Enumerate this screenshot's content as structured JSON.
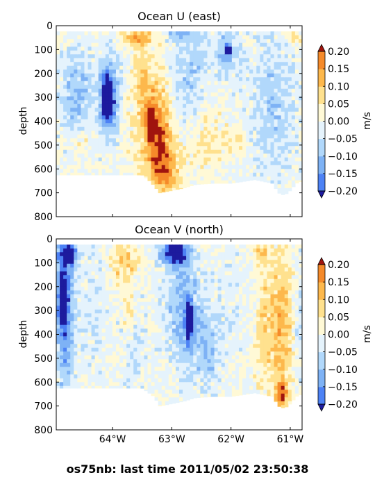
{
  "footer": "os75nb: last time 2011/05/02 23:50:38",
  "colormap": {
    "levels": [
      -0.2,
      -0.15,
      -0.1,
      -0.05,
      0.0,
      0.05,
      0.1,
      0.15,
      0.2
    ],
    "colors": [
      "#2a33f5",
      "#4d82f5",
      "#7eb2f5",
      "#b1d8fb",
      "#e5f3fc",
      "#fff9d6",
      "#ffe18e",
      "#fdb84c",
      "#f58a2a",
      "#e35010",
      "#b21800"
    ],
    "under_color": "#1d1b9e",
    "over_color": "#a0140e"
  },
  "chart_data": [
    {
      "type": "heatmap",
      "title": "Ocean U (east)",
      "xlabel": "",
      "ylabel": "depth",
      "colorbar_label": "m/s",
      "xlim": [
        -64.95,
        -60.8
      ],
      "ylim": [
        800,
        0
      ],
      "x_ticks": [
        -64,
        -63,
        -62,
        -61
      ],
      "x_tick_labels": [
        "64°W",
        "63°W",
        "62°W",
        "61°W"
      ],
      "x_tick_labels_visible": false,
      "y_ticks": [
        0,
        100,
        200,
        300,
        400,
        500,
        600,
        700,
        800
      ],
      "y_tick_labels": [
        "0",
        "100",
        "200",
        "300",
        "400",
        "500",
        "600",
        "700",
        "800"
      ],
      "colorbar_ticks": [
        "0.20",
        "0.15",
        "0.10",
        "0.05",
        "0.00",
        "−0.05",
        "−0.10",
        "−0.15",
        "−0.20"
      ],
      "bottom_depth_profile": {
        "x": [
          -64.95,
          -63.5,
          -63.35,
          -63.2,
          -63.0,
          -62.8,
          -62.6,
          -62.3,
          -62.0,
          -61.6,
          -61.3,
          -61.2,
          -61.1,
          -61.0,
          -60.9,
          -60.8
        ],
        "depth": [
          625,
          625,
          655,
          700,
          690,
          680,
          665,
          660,
          660,
          645,
          660,
          700,
          710,
          690,
          660,
          650
        ]
      },
      "features": [
        {
          "lon": -63.6,
          "depth": 50,
          "value": 0.13,
          "rx": 0.25,
          "ry": 40
        },
        {
          "lon": -63.5,
          "depth": 200,
          "value": 0.06,
          "rx": 0.15,
          "ry": 120
        },
        {
          "lon": -63.3,
          "depth": 400,
          "value": 0.13,
          "rx": 0.3,
          "ry": 220
        },
        {
          "lon": -63.35,
          "depth": 400,
          "value": 0.22,
          "rx": 0.07,
          "ry": 60
        },
        {
          "lon": -63.2,
          "depth": 500,
          "value": 0.11,
          "rx": 0.2,
          "ry": 130
        },
        {
          "lon": -63.1,
          "depth": 620,
          "value": 0.12,
          "rx": 0.25,
          "ry": 90
        },
        {
          "lon": -64.05,
          "depth": 300,
          "value": -0.2,
          "rx": 0.16,
          "ry": 160
        },
        {
          "lon": -64.1,
          "depth": 300,
          "value": -0.28,
          "rx": 0.07,
          "ry": 70
        },
        {
          "lon": -64.6,
          "depth": 280,
          "value": -0.1,
          "rx": 0.3,
          "ry": 180
        },
        {
          "lon": -64.5,
          "depth": 480,
          "value": 0.06,
          "rx": 0.15,
          "ry": 40
        },
        {
          "lon": -62.7,
          "depth": 200,
          "value": -0.08,
          "rx": 0.35,
          "ry": 220
        },
        {
          "lon": -62.4,
          "depth": 480,
          "value": 0.06,
          "rx": 0.3,
          "ry": 140
        },
        {
          "lon": -62.05,
          "depth": 110,
          "value": -0.11,
          "rx": 0.2,
          "ry": 90
        },
        {
          "lon": -62.05,
          "depth": 100,
          "value": -0.28,
          "rx": 0.04,
          "ry": 18
        },
        {
          "lon": -61.3,
          "depth": 330,
          "value": -0.08,
          "rx": 0.4,
          "ry": 300
        },
        {
          "lon": -61.9,
          "depth": 480,
          "value": 0.05,
          "rx": 0.2,
          "ry": 60
        },
        {
          "lon": -60.9,
          "depth": 40,
          "value": 0.07,
          "rx": 0.12,
          "ry": 40
        },
        {
          "lon": -62.8,
          "depth": 30,
          "value": -0.07,
          "rx": 0.35,
          "ry": 30
        }
      ]
    },
    {
      "type": "heatmap",
      "title": "Ocean V (north)",
      "xlabel": "",
      "ylabel": "depth",
      "colorbar_label": "m/s",
      "xlim": [
        -64.95,
        -60.8
      ],
      "ylim": [
        800,
        0
      ],
      "x_ticks": [
        -64,
        -63,
        -62,
        -61
      ],
      "x_tick_labels": [
        "64°W",
        "63°W",
        "62°W",
        "61°W"
      ],
      "x_tick_labels_visible": true,
      "y_ticks": [
        0,
        100,
        200,
        300,
        400,
        500,
        600,
        700,
        800
      ],
      "y_tick_labels": [
        "0",
        "100",
        "200",
        "300",
        "400",
        "500",
        "600",
        "700",
        "800"
      ],
      "colorbar_ticks": [
        "0.20",
        "0.15",
        "0.10",
        "0.05",
        "0.00",
        "−0.05",
        "−0.10",
        "−0.15",
        "−0.20"
      ],
      "bottom_depth_profile": {
        "x": [
          -64.95,
          -63.5,
          -63.3,
          -63.2,
          -63.0,
          -62.8,
          -62.6,
          -62.3,
          -62.0,
          -61.6,
          -61.3,
          -61.2,
          -61.1,
          -61.0,
          -60.9,
          -60.8
        ],
        "depth": [
          625,
          625,
          660,
          700,
          690,
          680,
          665,
          660,
          660,
          645,
          660,
          700,
          710,
          690,
          660,
          650
        ]
      },
      "features": [
        {
          "lon": -64.8,
          "depth": 300,
          "value": -0.18,
          "rx": 0.15,
          "ry": 320
        },
        {
          "lon": -64.85,
          "depth": 250,
          "value": -0.27,
          "rx": 0.06,
          "ry": 90
        },
        {
          "lon": -64.75,
          "depth": 60,
          "value": -0.23,
          "rx": 0.15,
          "ry": 50
        },
        {
          "lon": -64.3,
          "depth": 300,
          "value": -0.04,
          "rx": 0.25,
          "ry": 280
        },
        {
          "lon": -63.8,
          "depth": 100,
          "value": 0.1,
          "rx": 0.25,
          "ry": 80
        },
        {
          "lon": -63.7,
          "depth": 300,
          "value": 0.08,
          "rx": 0.1,
          "ry": 80
        },
        {
          "lon": -63.6,
          "depth": 400,
          "value": -0.05,
          "rx": 0.15,
          "ry": 200
        },
        {
          "lon": -62.95,
          "depth": 60,
          "value": -0.27,
          "rx": 0.22,
          "ry": 50
        },
        {
          "lon": -62.8,
          "depth": 300,
          "value": -0.12,
          "rx": 0.3,
          "ry": 230
        },
        {
          "lon": -62.7,
          "depth": 350,
          "value": -0.2,
          "rx": 0.06,
          "ry": 80
        },
        {
          "lon": -62.4,
          "depth": 450,
          "value": -0.09,
          "rx": 0.2,
          "ry": 180
        },
        {
          "lon": -62.0,
          "depth": 250,
          "value": -0.03,
          "rx": 0.3,
          "ry": 250
        },
        {
          "lon": -61.5,
          "depth": 60,
          "value": 0.09,
          "rx": 0.15,
          "ry": 50
        },
        {
          "lon": -61.15,
          "depth": 350,
          "value": 0.12,
          "rx": 0.2,
          "ry": 300
        },
        {
          "lon": -61.15,
          "depth": 650,
          "value": 0.18,
          "rx": 0.1,
          "ry": 60
        },
        {
          "lon": -61.45,
          "depth": 400,
          "value": 0.07,
          "rx": 0.15,
          "ry": 250
        },
        {
          "lon": -60.85,
          "depth": 300,
          "value": -0.05,
          "rx": 0.08,
          "ry": 250
        }
      ]
    }
  ]
}
